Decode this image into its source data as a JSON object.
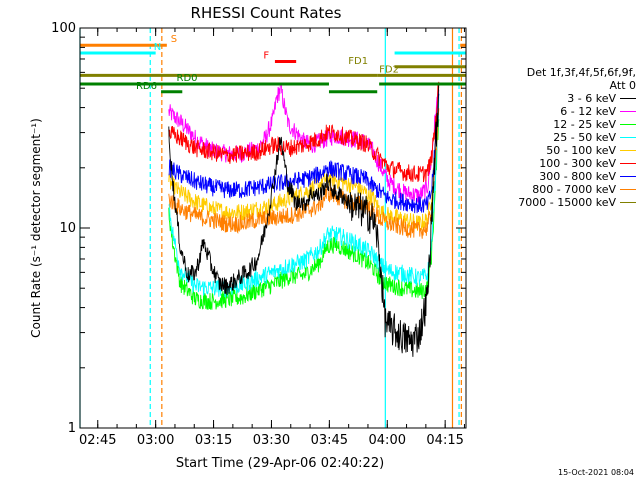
{
  "chart_data": {
    "type": "line",
    "title": "RHESSI Count Rates",
    "xlabel": "Start Time (29-Apr-06 02:40:22)",
    "ylabel": "Count Rate (s⁻¹ detector segment⁻¹)",
    "x_unit": "minutes since 02:40:22",
    "xlim": [
      0,
      100
    ],
    "ylim": [
      1,
      100
    ],
    "y_scale": "log",
    "x_ticks": [
      {
        "label": "02:45",
        "x": 4.6
      },
      {
        "label": "03:00",
        "x": 19.6
      },
      {
        "label": "03:15",
        "x": 34.6
      },
      {
        "label": "03:30",
        "x": 49.6
      },
      {
        "label": "03:45",
        "x": 64.6
      },
      {
        "label": "04:00",
        "x": 79.6
      },
      {
        "label": "04:15",
        "x": 94.6
      }
    ],
    "y_ticks": [
      {
        "label": "1",
        "y": 1
      },
      {
        "label": "10",
        "y": 10
      },
      {
        "label": "100",
        "y": 100
      }
    ],
    "legend_header": [
      "Det 1f,3f,4f,5f,6f,9f,",
      "Att 0"
    ],
    "series": [
      {
        "name": "3 - 6 keV",
        "color": "#000000",
        "x": [
          23,
          24,
          26,
          28,
          30,
          32,
          34,
          36,
          38,
          40,
          42,
          44,
          46,
          48,
          50,
          51,
          52,
          53,
          54,
          55,
          56,
          57,
          58,
          60,
          62,
          64,
          66,
          68,
          70,
          72,
          74,
          76,
          77,
          78,
          79,
          80,
          82,
          84,
          86,
          88,
          90,
          91,
          92,
          93
        ],
        "y": [
          30,
          17,
          8,
          5.8,
          6,
          8.5,
          6.5,
          5.3,
          5.1,
          5.4,
          5.8,
          6.2,
          7,
          10,
          16,
          22,
          28,
          21,
          16,
          15,
          13,
          14,
          13,
          15,
          14.5,
          17,
          15,
          14.5,
          13,
          12.5,
          12,
          11,
          9,
          6,
          3.5,
          3.2,
          3,
          2.8,
          2.7,
          3,
          4.5,
          10,
          25,
          45
        ]
      },
      {
        "name": "6 - 12 keV",
        "color": "#ff00ff",
        "x": [
          23,
          26,
          30,
          34,
          38,
          42,
          46,
          48,
          50,
          51,
          52,
          53,
          54,
          56,
          58,
          60,
          62,
          64,
          66,
          70,
          74,
          76,
          78,
          80,
          84,
          88,
          90,
          91,
          92,
          93
        ],
        "y": [
          38,
          34,
          28,
          24.5,
          23.5,
          23.5,
          25,
          28,
          35,
          45,
          50,
          40,
          33,
          30,
          27,
          26,
          27,
          28,
          29,
          28,
          27,
          24,
          20,
          17,
          15,
          14.5,
          16,
          22,
          35,
          52
        ]
      },
      {
        "name": "12 - 25 keV",
        "color": "#00ff00",
        "x": [
          23,
          24,
          26,
          30,
          34,
          38,
          42,
          46,
          50,
          54,
          58,
          62,
          64,
          66,
          68,
          70,
          72,
          74,
          76,
          78,
          80,
          84,
          88,
          90,
          91,
          92,
          93
        ],
        "y": [
          12,
          8.5,
          5.3,
          4.4,
          4.3,
          4.4,
          4.5,
          4.9,
          5.2,
          5.7,
          5.8,
          6.7,
          8.1,
          8.3,
          8,
          7.6,
          7.3,
          6.8,
          6.3,
          5.5,
          5.2,
          5,
          4.8,
          5,
          7,
          15,
          40
        ]
      },
      {
        "name": "25 - 50 keV",
        "color": "#00ffff",
        "x": [
          23,
          24,
          26,
          30,
          34,
          38,
          42,
          46,
          50,
          54,
          58,
          62,
          64,
          66,
          68,
          70,
          72,
          74,
          76,
          78,
          80,
          84,
          88,
          90,
          91,
          92,
          93
        ],
        "y": [
          13,
          9.5,
          6.2,
          5.1,
          5,
          5,
          5.2,
          5.6,
          6,
          6.5,
          6.8,
          7.8,
          9.2,
          9.3,
          9,
          8.6,
          8.3,
          7.8,
          7.3,
          6.5,
          6.1,
          5.9,
          5.6,
          5.8,
          8,
          17,
          45
        ]
      },
      {
        "name": "50 - 100 keV",
        "color": "#ffcc00",
        "x": [
          23,
          26,
          30,
          34,
          38,
          42,
          46,
          50,
          54,
          58,
          62,
          64,
          66,
          68,
          70,
          72,
          74,
          76,
          78,
          80,
          84,
          88,
          90,
          91,
          92,
          93
        ],
        "y": [
          17,
          15,
          13.5,
          12.5,
          12,
          12,
          12.5,
          13,
          14,
          15,
          16.5,
          18,
          17.5,
          17,
          16.5,
          16,
          15,
          14,
          12,
          11.5,
          11,
          10.5,
          11,
          14,
          25,
          50
        ]
      },
      {
        "name": "100 - 300 keV",
        "color": "#ff0000",
        "x": [
          23,
          26,
          30,
          34,
          38,
          42,
          46,
          50,
          52,
          54,
          58,
          62,
          64,
          66,
          70,
          74,
          78,
          80,
          84,
          88,
          90,
          91,
          92,
          93
        ],
        "y": [
          30,
          28,
          25,
          24,
          23,
          23.5,
          24,
          26,
          25.5,
          25,
          26,
          28,
          30,
          30,
          28,
          26.5,
          22,
          20,
          19,
          18.5,
          19,
          22,
          32,
          55
        ]
      },
      {
        "name": "300 - 800 keV",
        "color": "#0000ff",
        "x": [
          23,
          26,
          30,
          34,
          38,
          42,
          46,
          50,
          54,
          58,
          62,
          64,
          66,
          70,
          74,
          76,
          78,
          80,
          84,
          88,
          90,
          91,
          92,
          93
        ],
        "y": [
          20,
          18.5,
          17,
          16,
          15.5,
          15.5,
          16,
          16.5,
          17,
          17.5,
          18.5,
          20,
          19.5,
          18.5,
          17.5,
          16,
          15,
          14,
          13.5,
          13,
          13,
          15,
          25,
          48
        ]
      },
      {
        "name": "800 - 7000 keV",
        "color": "#ff7f00",
        "x": [
          23,
          26,
          30,
          34,
          38,
          42,
          46,
          50,
          54,
          58,
          62,
          64,
          66,
          70,
          74,
          76,
          78,
          80,
          84,
          88,
          90,
          91,
          92,
          93
        ],
        "y": [
          14,
          12.5,
          11.5,
          11,
          10.5,
          10.5,
          11,
          11.2,
          11.5,
          12,
          13,
          15,
          14.5,
          13.5,
          13,
          12,
          11,
          10.5,
          10,
          9.7,
          10,
          12,
          20,
          45
        ]
      },
      {
        "name": "7000 - 15000 keV",
        "color": "#808000",
        "x": [],
        "y": []
      }
    ],
    "state_bars": [
      {
        "label": "S",
        "color": "#ff7f00",
        "x_start": 0,
        "x_end": 22.5,
        "y": 82,
        "label_x": 23.5
      },
      {
        "label": "",
        "color": "#ff7f00",
        "x_start": 98.5,
        "x_end": 100,
        "y": 82
      },
      {
        "label": "N",
        "color": "#00ffff",
        "x_start": 0,
        "x_end": 19.6,
        "y": 75,
        "label_x": 19.1
      },
      {
        "label": "",
        "color": "#00ffff",
        "x_start": 81.5,
        "x_end": 100,
        "y": 75
      },
      {
        "label": "F",
        "color": "#ff0000",
        "x_start": 50.5,
        "x_end": 56,
        "y": 68,
        "label_x": 47.5
      },
      {
        "label": "FD1",
        "color": "#808000",
        "x_start": 81.5,
        "x_end": 100,
        "y": 64,
        "label_x": 69.5
      },
      {
        "label": "",
        "color": "#808000",
        "x_start": 0,
        "x_end": 77,
        "y": 58
      },
      {
        "label": "FD2",
        "color": "#808000",
        "x_start": 77,
        "x_end": 100,
        "y": 58,
        "label_x": 77.5
      },
      {
        "label": "RD0",
        "color": "#008000",
        "x_start": 0,
        "x_end": 64.5,
        "y": 52.5,
        "label_x": 25
      },
      {
        "label": "",
        "color": "#008000",
        "x_start": 77.5,
        "x_end": 100,
        "y": 52.5
      },
      {
        "label": "RD6",
        "color": "#008000",
        "x_start": 21,
        "x_end": 26.5,
        "y": 48,
        "label_x": 14.5
      },
      {
        "label": "",
        "color": "#008000",
        "x_start": 64.5,
        "x_end": 77,
        "y": 48
      }
    ],
    "vertical_lines": [
      {
        "x": 0,
        "color": "#00ffff",
        "style": "solid"
      },
      {
        "x": 18.2,
        "color": "#00ffff",
        "style": "dashed"
      },
      {
        "x": 21.2,
        "color": "#ff7f00",
        "style": "dashed"
      },
      {
        "x": 79.1,
        "color": "#00ffff",
        "style": "solid"
      },
      {
        "x": 96.5,
        "color": "#ff7f00",
        "style": "solid"
      },
      {
        "x": 98.2,
        "color": "#00ffff",
        "style": "dashed"
      },
      {
        "x": 98.8,
        "color": "#ff7f00",
        "style": "dashed"
      }
    ]
  },
  "footer_timestamp": "15-Oct-2021 08:04"
}
